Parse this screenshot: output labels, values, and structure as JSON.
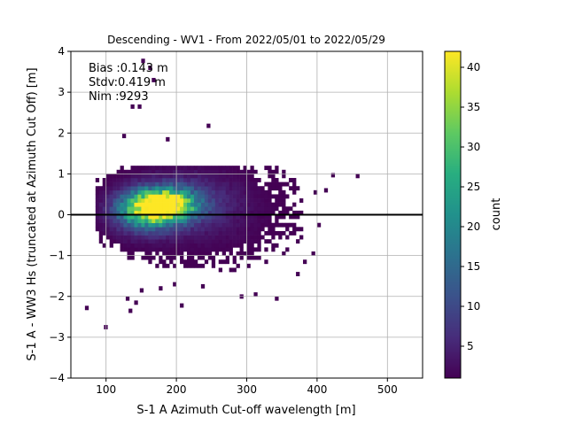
{
  "chart_data": {
    "type": "heatmap",
    "title": "Descending - WV1 - From 2022/05/01 to 2022/05/29",
    "xlabel": "S-1 A Azimuth Cut-off wavelength [m]",
    "ylabel": "S-1 A - WW3 Hs (truncated at Azimuth Cut Off) [m]",
    "xlim": [
      50,
      550
    ],
    "ylim": [
      -4,
      4
    ],
    "xticks": [
      100,
      200,
      300,
      400,
      500
    ],
    "yticks": [
      -4,
      -3,
      -2,
      -1,
      0,
      1,
      2,
      3,
      4
    ],
    "grid": true,
    "zero_line": {
      "y": 0,
      "color": "#000000"
    },
    "annotations": [
      "Bias :0.143 m",
      "Stdv:0.419 m",
      "Nim :9293"
    ],
    "colorbar": {
      "label": "count",
      "colormap": "viridis",
      "min": 1,
      "max": 42,
      "ticks": [
        5,
        10,
        15,
        20,
        25,
        30,
        35,
        40
      ]
    },
    "bins": {
      "x_step": 5,
      "y_step": 0.1
    },
    "clusters": [
      {
        "x_center": 180,
        "y_center": 0.18,
        "x_spread": 28,
        "y_spread": 0.25,
        "peak": 42
      },
      {
        "x_center": 150,
        "y_center": 0.05,
        "x_spread": 30,
        "y_spread": 0.35,
        "peak": 22
      },
      {
        "x_center": 210,
        "y_center": 0.25,
        "x_spread": 45,
        "y_spread": 0.45,
        "peak": 8
      },
      {
        "x_center": 240,
        "y_center": 0.0,
        "x_spread": 80,
        "y_spread": 0.8,
        "peak": 2
      }
    ],
    "outliers": [
      {
        "x": 70,
        "y": -2.33
      },
      {
        "x": 97,
        "y": -2.8
      },
      {
        "x": 123,
        "y": 1.88
      },
      {
        "x": 132,
        "y": -2.4
      },
      {
        "x": 140,
        "y": -2.2
      },
      {
        "x": 135,
        "y": 2.6
      },
      {
        "x": 145,
        "y": 2.6
      },
      {
        "x": 150,
        "y": 3.72
      },
      {
        "x": 160,
        "y": 3.55
      },
      {
        "x": 165,
        "y": 3.25
      },
      {
        "x": 185,
        "y": 1.8
      },
      {
        "x": 205,
        "y": -2.27
      },
      {
        "x": 243,
        "y": 2.13
      },
      {
        "x": 455,
        "y": 0.9
      },
      {
        "x": 420,
        "y": 0.92
      },
      {
        "x": 410,
        "y": 0.55
      },
      {
        "x": 400,
        "y": -0.3
      },
      {
        "x": 392,
        "y": -1.0
      },
      {
        "x": 380,
        "y": -1.2
      },
      {
        "x": 370,
        "y": -1.5
      },
      {
        "x": 340,
        "y": -2.1
      },
      {
        "x": 310,
        "y": -2.0
      },
      {
        "x": 290,
        "y": -2.05
      },
      {
        "x": 235,
        "y": -1.8
      },
      {
        "x": 195,
        "y": -1.75
      },
      {
        "x": 175,
        "y": -1.85
      },
      {
        "x": 148,
        "y": -1.9
      },
      {
        "x": 360,
        "y": 0.8
      },
      {
        "x": 395,
        "y": 0.5
      },
      {
        "x": 128,
        "y": -2.1
      }
    ]
  }
}
